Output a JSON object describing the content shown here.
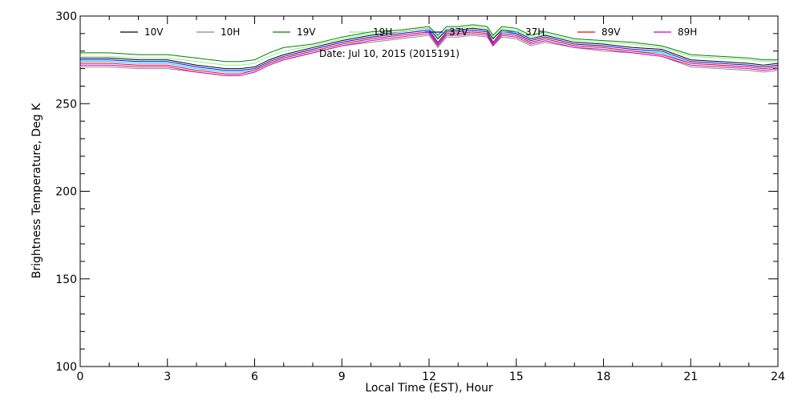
{
  "chart_data": {
    "type": "line",
    "title": "",
    "annotation": "Date: Jul 10, 2015 (2015191)",
    "xlabel": "Local Time (EST), Hour",
    "ylabel": "Brightness Temperature, Deg K",
    "xlim": [
      0,
      24
    ],
    "ylim": [
      100,
      300
    ],
    "xticks": [
      "0",
      "3",
      "6",
      "9",
      "12",
      "15",
      "18",
      "21",
      "24"
    ],
    "yticks": [
      "100",
      "150",
      "200",
      "250",
      "300"
    ],
    "grid": false,
    "legend_position": "top",
    "x": [
      0,
      1,
      2,
      3,
      4,
      5,
      5.5,
      6,
      6.5,
      7,
      8,
      9,
      10,
      11,
      11.5,
      12,
      12.3,
      12.6,
      13,
      13.5,
      14,
      14.2,
      14.5,
      15,
      15.5,
      16,
      17,
      18,
      19,
      20,
      21,
      22,
      23,
      23.5,
      24
    ],
    "series": [
      {
        "name": "10V",
        "color": "#000000",
        "values": [
          276,
          276,
          275,
          275,
          272,
          270,
          270,
          271,
          275,
          278,
          282,
          286,
          289,
          291,
          292,
          293,
          287,
          292,
          292,
          293,
          292,
          287,
          292,
          291,
          287,
          289,
          285,
          284,
          282,
          281,
          275,
          274,
          273,
          272,
          273
        ]
      },
      {
        "name": "10H",
        "color": "#8a8a8a",
        "values": [
          271,
          271,
          270,
          270,
          268,
          266,
          266,
          268,
          272,
          275,
          279,
          283,
          285,
          287,
          288,
          289,
          282,
          288,
          288,
          289,
          288,
          283,
          288,
          287,
          283,
          285,
          282,
          280,
          279,
          277,
          271,
          270,
          269,
          268,
          269
        ]
      },
      {
        "name": "19V",
        "color": "#008000",
        "values": [
          279,
          279,
          278,
          278,
          276,
          274,
          274,
          275,
          279,
          282,
          284,
          288,
          291,
          292,
          293,
          294,
          289,
          294,
          294,
          295,
          294,
          289,
          294,
          293,
          289,
          291,
          287,
          286,
          285,
          283,
          278,
          277,
          276,
          275,
          275
        ]
      },
      {
        "name": "19H",
        "color": "#90ee90",
        "values": [
          277,
          277,
          276,
          276,
          274,
          272,
          272,
          273,
          277,
          280,
          283,
          287,
          290,
          291,
          292,
          293,
          288,
          293,
          293,
          294,
          293,
          288,
          293,
          292,
          288,
          290,
          286,
          285,
          284,
          282,
          277,
          276,
          275,
          274,
          274
        ]
      },
      {
        "name": "37V",
        "color": "#0000ff",
        "values": [
          275,
          275,
          274,
          274,
          271,
          269,
          269,
          270,
          274,
          277,
          281,
          285,
          288,
          290,
          291,
          292,
          285,
          291,
          291,
          292,
          291,
          285,
          291,
          290,
          286,
          288,
          284,
          283,
          281,
          280,
          274,
          273,
          272,
          271,
          272
        ]
      },
      {
        "name": "37H",
        "color": "#00cfff",
        "values": [
          274,
          274,
          273,
          273,
          270,
          268,
          268,
          269,
          273,
          276,
          280,
          284,
          287,
          289,
          290,
          291,
          284,
          290,
          290,
          291,
          290,
          284,
          290,
          289,
          285,
          287,
          283,
          282,
          280,
          279,
          273,
          272,
          271,
          270,
          271
        ]
      },
      {
        "name": "89V",
        "color": "#ff0000",
        "values": [
          273,
          273,
          272,
          272,
          269,
          267,
          267,
          269,
          273,
          276,
          280,
          284,
          287,
          289,
          290,
          291,
          284,
          290,
          290,
          291,
          290,
          284,
          290,
          289,
          285,
          287,
          283,
          282,
          280,
          278,
          273,
          272,
          271,
          270,
          271
        ]
      },
      {
        "name": "89H",
        "color": "#cc00cc",
        "values": [
          272,
          272,
          271,
          271,
          268,
          266,
          266,
          268,
          272,
          275,
          279,
          283,
          286,
          288,
          289,
          290,
          283,
          289,
          289,
          290,
          289,
          283,
          289,
          288,
          284,
          286,
          282,
          281,
          279,
          277,
          272,
          271,
          270,
          269,
          270
        ]
      }
    ]
  }
}
